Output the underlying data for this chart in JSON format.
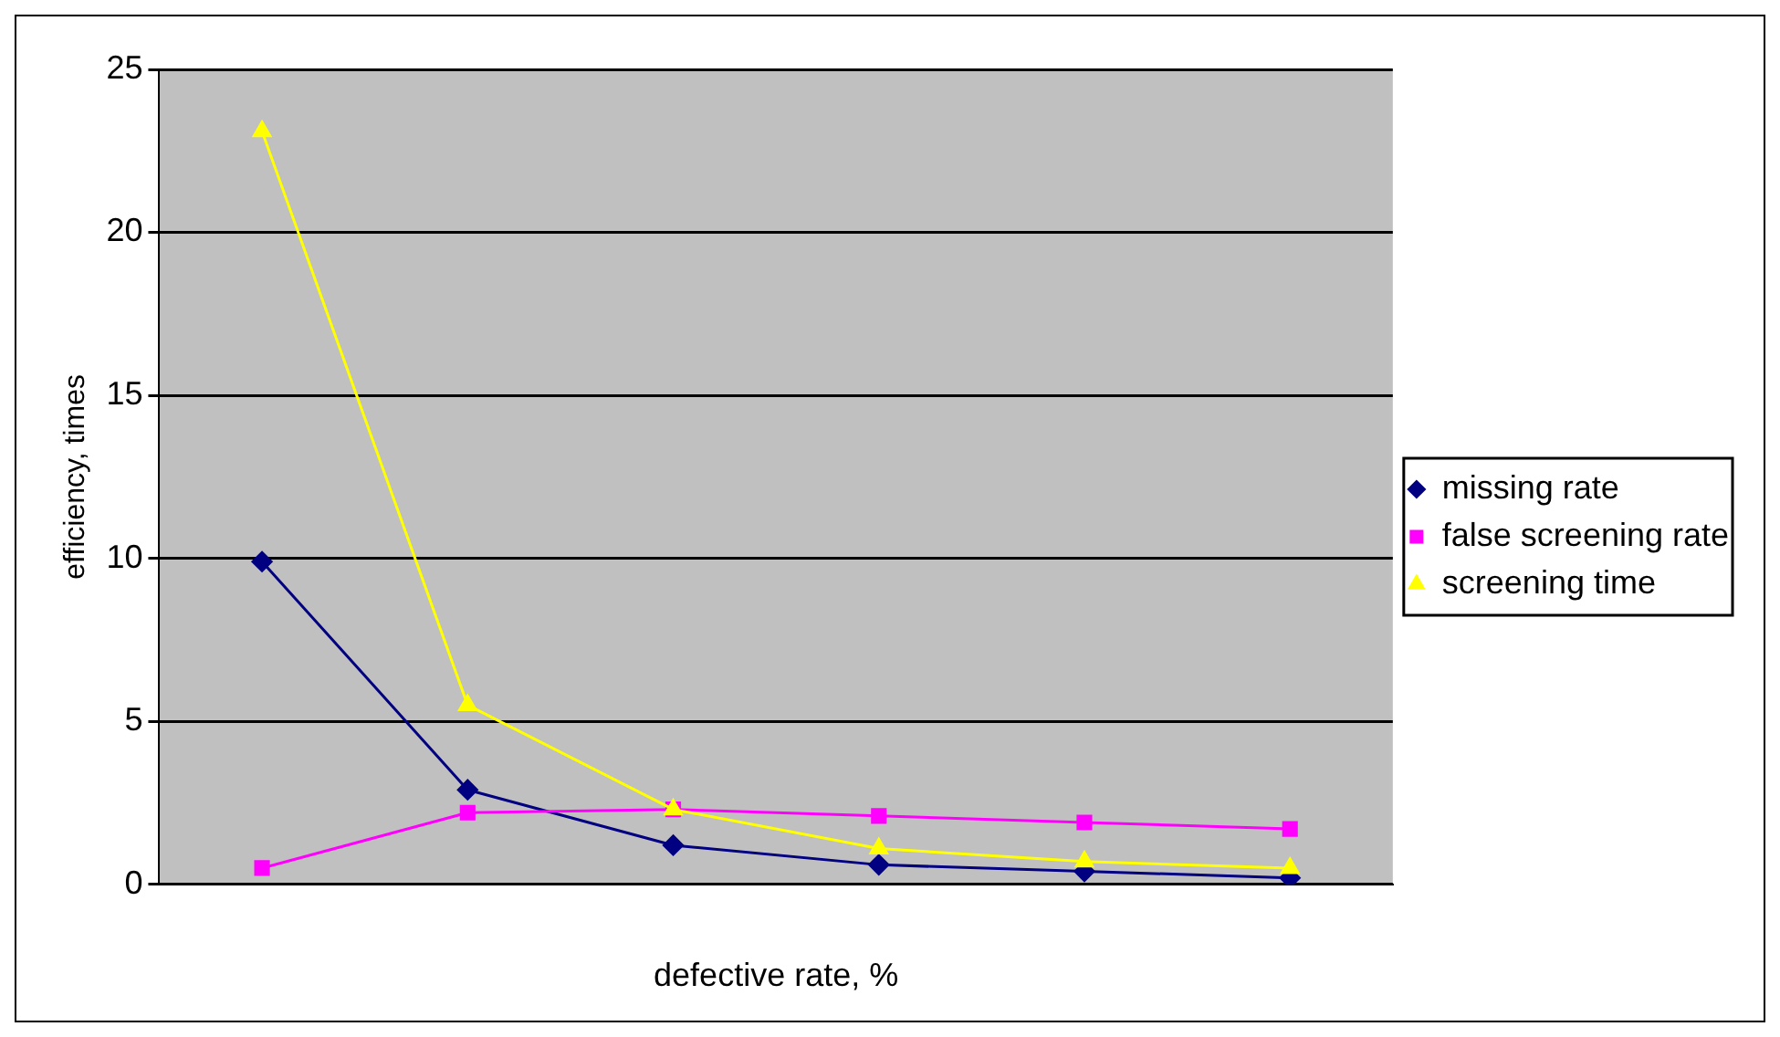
{
  "chart_data": {
    "type": "line",
    "xlabel": "defective rate, %",
    "ylabel": "efficiency, times",
    "categories": [
      null,
      null,
      null,
      null,
      null,
      null
    ],
    "series": [
      {
        "name": "missing rate",
        "color": "#000080",
        "marker": "diamond",
        "values": [
          9.9,
          2.9,
          1.2,
          0.6,
          0.4,
          0.2
        ]
      },
      {
        "name": "false screening rate",
        "color": "#ff00ff",
        "marker": "square",
        "values": [
          0.5,
          2.2,
          2.3,
          2.1,
          1.9,
          1.7
        ]
      },
      {
        "name": "screening time",
        "color": "#ffff00",
        "marker": "triangle",
        "values": [
          23.1,
          5.5,
          2.3,
          1.1,
          0.7,
          0.5
        ]
      }
    ],
    "ylim": [
      0,
      25
    ],
    "yticks": [
      0,
      5,
      10,
      15,
      20,
      25
    ],
    "grid": "y",
    "legend": "right",
    "tick_labels": "y",
    "line_style": "solid"
  }
}
